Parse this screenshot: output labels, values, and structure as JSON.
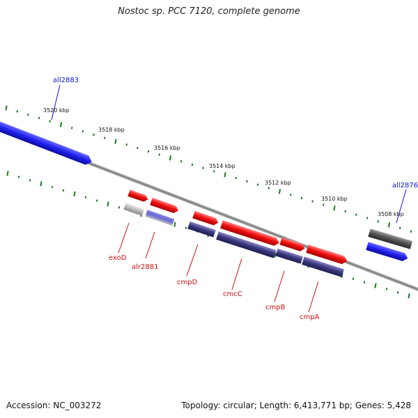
{
  "title": "Nostoc sp. PCC 7120, complete genome",
  "footer": {
    "accession": "Accession: NC_003272",
    "stats": "Topology: circular; Length: 6,413,771 bp; Genes: 5,428"
  },
  "ticks": [
    {
      "label": "3520 kbp"
    },
    {
      "label": "3518 kbp"
    },
    {
      "label": "3516 kbp"
    },
    {
      "label": "3514 kbp"
    },
    {
      "label": "3512 kbp"
    },
    {
      "label": "3510 kbp"
    },
    {
      "label": "3508 kbp"
    }
  ],
  "gene_labels": {
    "all2883": "all2883",
    "all2876": "all2876",
    "exoD": "exoD",
    "alr2881": "alr2881",
    "cmpD": "cmpD",
    "cmcC": "cmcC",
    "cmpB": "cmpB",
    "cmpA": "cmpA"
  },
  "colors": {
    "backbone": "#7a7a7a",
    "tick": "#1a7a1a",
    "forward_gene": "#2020ee",
    "cds": "#ee1111",
    "protein_feature": "#3d3a80",
    "misc_feature": "#b8b8b8",
    "reverse_gene": "#555555",
    "blue_label": "#1111cc",
    "red_label": "#cc1111"
  }
}
